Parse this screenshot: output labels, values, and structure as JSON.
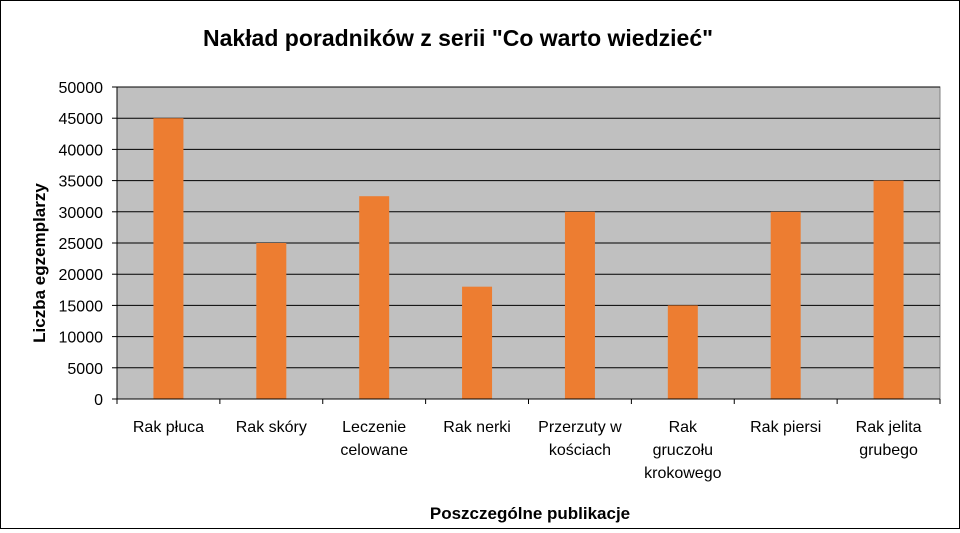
{
  "chart_data": {
    "type": "bar",
    "title": "Nakład poradników z serii \"Co warto wiedzieć\"",
    "xlabel": "Poszczególne publikacje",
    "ylabel": "Liczba egzemplarzy",
    "ylim": [
      0,
      50000
    ],
    "yticks": [
      "0",
      "5000",
      "10000",
      "15000",
      "20000",
      "25000",
      "30000",
      "35000",
      "40000",
      "45000",
      "50000"
    ],
    "categories": [
      [
        "Rak płuca"
      ],
      [
        "Rak skóry"
      ],
      [
        "Leczenie",
        "celowane"
      ],
      [
        "Rak nerki"
      ],
      [
        "Przerzuty w",
        "kościach"
      ],
      [
        "Rak",
        "gruczołu",
        "krokowego"
      ],
      [
        "Rak piersi"
      ],
      [
        "Rak jelita",
        "grubego"
      ]
    ],
    "values": [
      45000,
      25000,
      32500,
      18000,
      30000,
      15000,
      30000,
      35000
    ],
    "grid": true,
    "legend": "none",
    "colors": {
      "bar": "#ED7D31",
      "plot_background": "#C0C0C0",
      "gridline": "#000000"
    }
  }
}
